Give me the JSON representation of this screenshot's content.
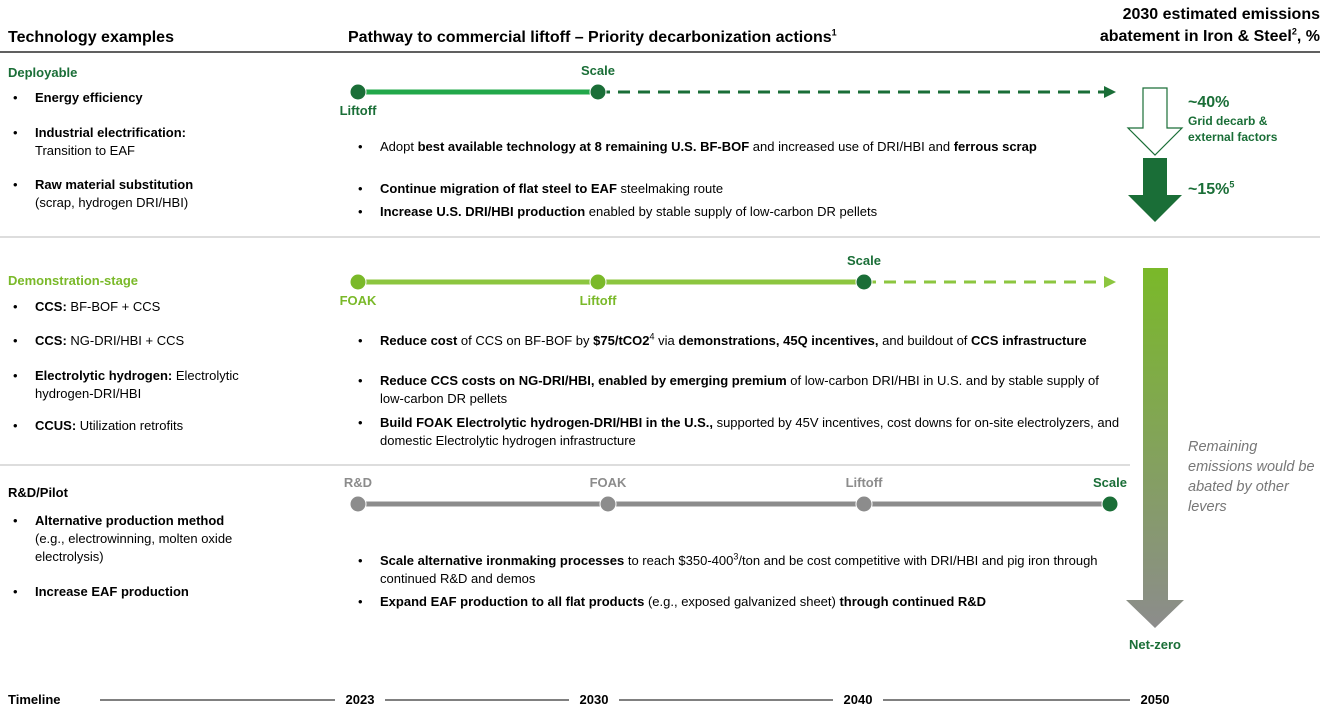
{
  "header": {
    "technology": "Technology examples",
    "pathway": [
      {
        "text": "Pathway to commercial liftoff – Priority decarbonization actions",
        "bold": true
      },
      {
        "text": "1",
        "sup": true
      }
    ],
    "abatement": [
      [
        {
          "text": "2030 estimated emissions",
          "bold": true
        }
      ],
      [
        {
          "text": "abatement in Iron & Steel",
          "bold": true
        },
        {
          "text": "2",
          "sup": true,
          "bold": true
        },
        {
          "text": ", %"
        }
      ]
    ]
  },
  "sections": [
    {
      "title": "Deployable",
      "title_color": "#1a6e37",
      "line_color": "#22a84a",
      "dash_color": "#1a6e37",
      "techs": [
        [
          [
            {
              "text": "Energy efficiency",
              "bold": true
            }
          ]
        ],
        [
          [
            {
              "text": "Industrial electrification:",
              "bold": true
            }
          ],
          [
            {
              "text": "Transition to EAF"
            }
          ]
        ],
        [
          [
            {
              "text": "Raw material substitution",
              "bold": true
            }
          ],
          [
            {
              "text": "(scrap, hydrogen DRI/HBI)"
            }
          ]
        ]
      ],
      "milestones": [
        {
          "label": "Liftoff",
          "color": "#1a6e37"
        },
        {
          "label": "Scale",
          "color": "#1a6e37"
        }
      ],
      "actions": [
        [
          {
            "text": "Adopt "
          },
          {
            "text": "best available technology at 8 remaining U.S. BF-BOF",
            "bold": true
          },
          {
            "text": " and increased use of DRI/HBI and "
          },
          {
            "text": "ferrous scrap",
            "bold": true
          }
        ],
        [
          {
            "text": "Continue migration of flat steel to EAF",
            "bold": true
          },
          {
            "text": " steelmaking route"
          }
        ],
        [
          {
            "text": "Increase U.S. DRI/HBI production",
            "bold": true
          },
          {
            "text": " enabled by stable supply of low-carbon DR pellets"
          }
        ]
      ]
    },
    {
      "title": "Demonstration-stage",
      "title_color": "#7ab929",
      "line_color": "#8cc63f",
      "dash_color": "#8cc63f",
      "techs": [
        [
          [
            {
              "text": "CCS:",
              "bold": true
            },
            {
              "text": " BF-BOF + CCS"
            }
          ]
        ],
        [
          [
            {
              "text": "CCS:",
              "bold": true
            },
            {
              "text": " NG-DRI/HBI + CCS"
            }
          ]
        ],
        [
          [
            {
              "text": "Electrolytic hydrogen:",
              "bold": true
            },
            {
              "text": " Electrolytic hydrogen-DRI/HBI"
            }
          ]
        ],
        [
          [
            {
              "text": "CCUS:",
              "bold": true
            },
            {
              "text": " Utilization retrofits"
            }
          ]
        ]
      ],
      "milestones": [
        {
          "label": "FOAK",
          "color": "#7ab929"
        },
        {
          "label": "Liftoff",
          "color": "#7ab929"
        },
        {
          "label": "Scale",
          "color": "#1a6e37"
        }
      ],
      "actions": [
        [
          {
            "text": "Reduce cost",
            "bold": true
          },
          {
            "text": " of CCS on BF-BOF by "
          },
          {
            "text": "$75/tCO2",
            "bold": true
          },
          {
            "text": "4",
            "sup": true
          },
          {
            "text": " via "
          },
          {
            "text": "demonstrations, 45Q incentives,",
            "bold": true
          },
          {
            "text": " and buildout of "
          },
          {
            "text": "CCS infrastructure",
            "bold": true
          }
        ],
        [
          {
            "text": "Reduce CCS costs on NG-DRI/HBI, enabled by emerging premium",
            "bold": true
          },
          {
            "text": " of low-carbon DRI/HBI in U.S. and by stable supply of low-carbon DR pellets"
          }
        ],
        [
          {
            "text": "Build FOAK Electrolytic hydrogen-DRI/HBI in the U.S.,",
            "bold": true
          },
          {
            "text": " supported by 45V incentives, cost downs for on-site electrolyzers, and domestic Electrolytic hydrogen infrastructure"
          }
        ]
      ]
    },
    {
      "title": "R&D/Pilot",
      "title_color": "#000000",
      "line_color": "#8c8c8c",
      "techs": [
        [
          [
            {
              "text": "Alternative production method",
              "bold": true
            }
          ],
          [
            {
              "text": "(e.g., electrowinning, molten oxide electrolysis)"
            }
          ]
        ],
        [
          [
            {
              "text": "Increase EAF production",
              "bold": true
            }
          ]
        ]
      ],
      "milestones": [
        {
          "label": "R&D",
          "color": "#8c8c8c"
        },
        {
          "label": "FOAK",
          "color": "#8c8c8c"
        },
        {
          "label": "Liftoff",
          "color": "#8c8c8c"
        },
        {
          "label": "Scale",
          "color": "#1a6e37"
        }
      ],
      "actions": [
        [
          {
            "text": "Scale alternative ironmaking processes",
            "bold": true
          },
          {
            "text": " to reach $350-400"
          },
          {
            "text": "3",
            "sup": true
          },
          {
            "text": "/ton and be cost competitive with DRI/HBI and pig iron through continued R&D and demos"
          }
        ],
        [
          {
            "text": "Expand EAF production to all flat products",
            "bold": true
          },
          {
            "text": " (e.g., exposed galvanized sheet) "
          },
          {
            "text": "through continued R&D",
            "bold": true
          }
        ]
      ]
    }
  ],
  "abatement": {
    "grid_value": "~40%",
    "grid_label": "Grid decarb & external factors",
    "efficiency_value": [
      {
        "text": "~15%"
      },
      {
        "text": "5",
        "sup": true
      }
    ],
    "remaining": "Remaining emissions would be abated by other levers",
    "end": "Net-zero"
  },
  "timeline": {
    "label": "Timeline",
    "years": [
      "2023",
      "2030",
      "2040",
      "2050"
    ]
  }
}
